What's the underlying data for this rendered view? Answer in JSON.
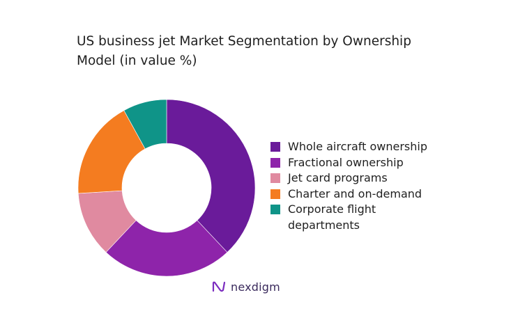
{
  "chart_data": {
    "type": "pie",
    "title": "US business jet Market Segmentation by Ownership Model (in value %)",
    "categories": [
      "Whole aircraft ownership",
      "Fractional ownership",
      "Jet card programs",
      "Charter and on-demand",
      "Corporate flight departments"
    ],
    "values": [
      38,
      24,
      12,
      18,
      8
    ],
    "colors": [
      "#6a1b9a",
      "#8e24aa",
      "#e08aa0",
      "#f47c20",
      "#0f9488"
    ],
    "donut": true,
    "legend": "right"
  },
  "brand": {
    "name": "nexdigm",
    "icon": "nexdigm-logo-icon"
  }
}
